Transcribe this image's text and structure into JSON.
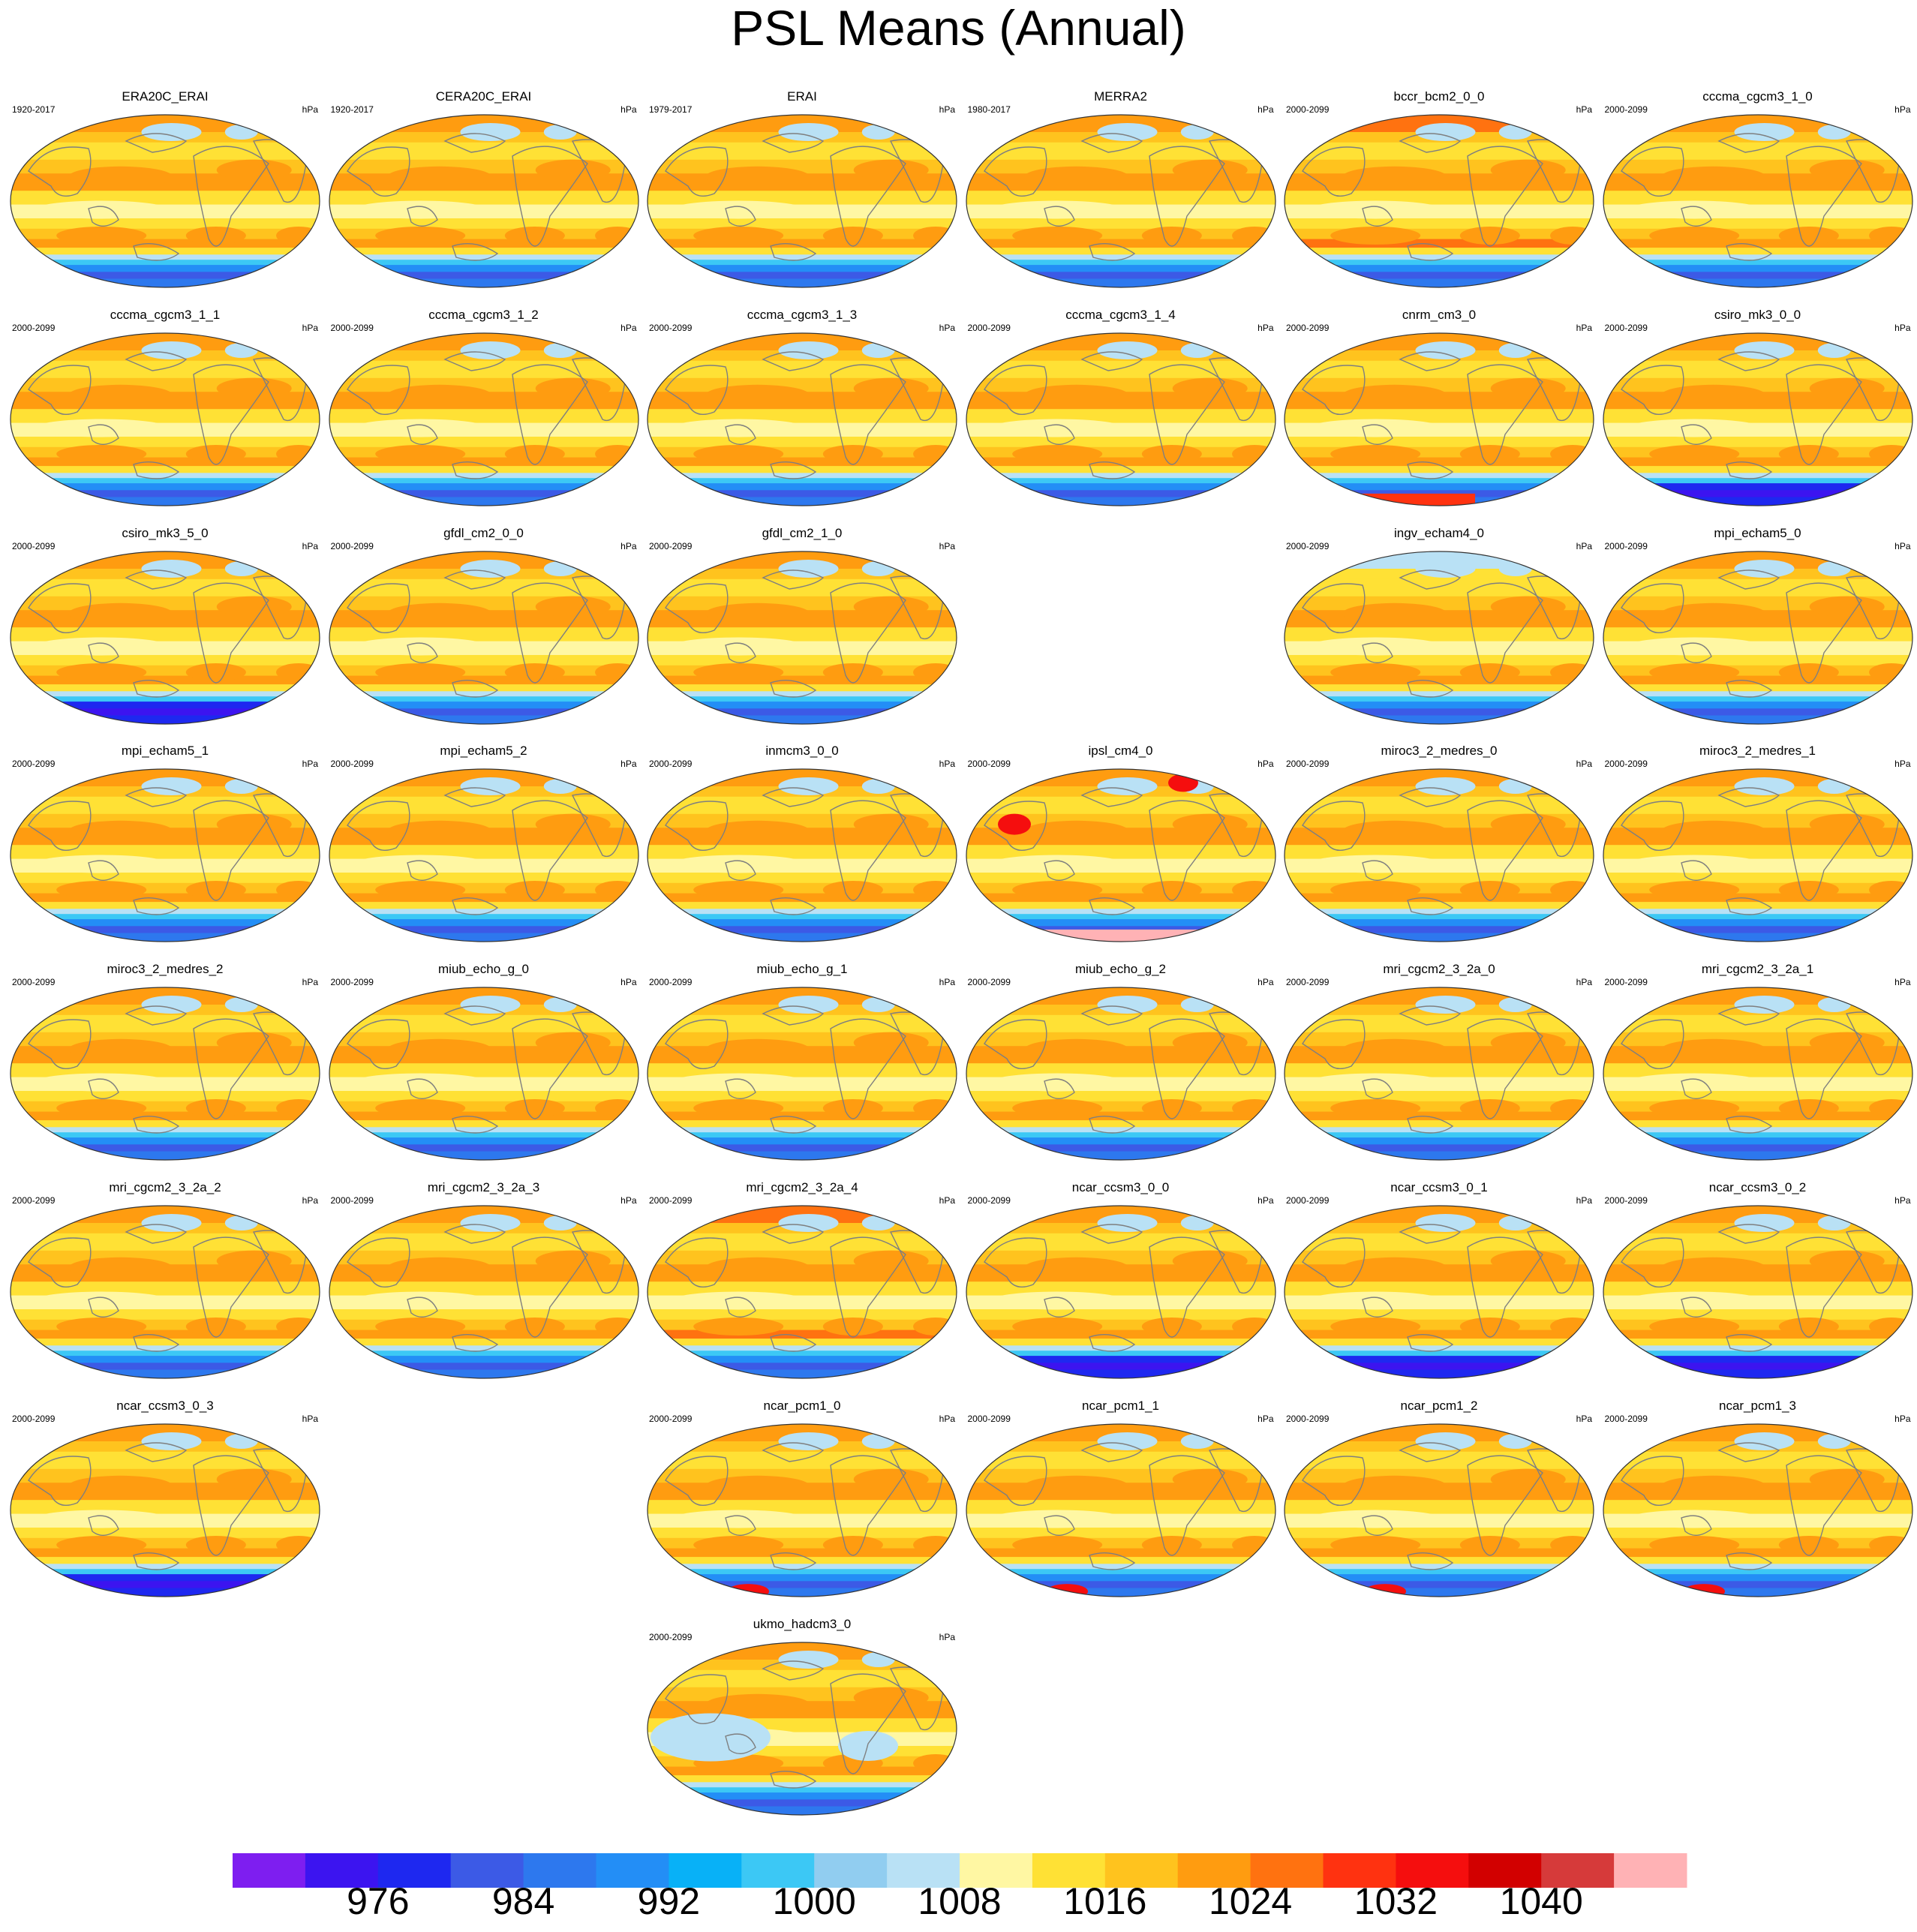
{
  "title": "PSL Means (Annual)",
  "units": "hPa",
  "palette": {
    "bins": [
      "#7e1ef0",
      "#3c14f0",
      "#1e28f0",
      "#3c5ae6",
      "#2d78ee",
      "#238ef6",
      "#08b1f7",
      "#3cc8f5",
      "#91cdf0",
      "#b9e1f5",
      "#fff7a3",
      "#ffe135",
      "#ffc31e",
      "#ff9c10",
      "#ff7210",
      "#ff3210",
      "#f50e0e",
      "#d20000",
      "#d63a3a",
      "#ffb2b5"
    ],
    "levels": [
      "976",
      "984",
      "992",
      "1000",
      "1008",
      "1016",
      "1024",
      "1032",
      "1040"
    ],
    "coast": "#7f7f7f",
    "outline": "#333333"
  },
  "map_style": {
    "default": {
      "shade": "#ffc31e",
      "pacific": "#ff9c10",
      "antarctic": "#3c5ae6"
    },
    "variants": {
      "ipsl_cm4_0": {
        "antarctic_cap": "#ffb2b5",
        "land_high": "#f50e0e"
      },
      "ukmo_hadcm3_0": {
        "tropics": "#b9e1f5"
      },
      "cnrm_cm3_0": {
        "antarctic_cap": "#ff3210"
      }
    }
  },
  "panels": [
    {
      "name": "ERA20C_ERAI",
      "period": "1920-2017",
      "units": "hPa",
      "style": "obs"
    },
    {
      "name": "CERA20C_ERAI",
      "period": "1920-2017",
      "units": "hPa",
      "style": "obs"
    },
    {
      "name": "ERAI",
      "period": "1979-2017",
      "units": "hPa",
      "style": "obs"
    },
    {
      "name": "MERRA2",
      "period": "1980-2017",
      "units": "hPa",
      "style": "obs"
    },
    {
      "name": "bccr_bcm2_0_0",
      "period": "2000-2099",
      "units": "hPa",
      "style": "warm"
    },
    {
      "name": "cccma_cgcm3_1_0",
      "period": "2000-2099",
      "units": "hPa",
      "style": "model"
    },
    {
      "name": "cccma_cgcm3_1_1",
      "period": "2000-2099",
      "units": "hPa",
      "style": "model"
    },
    {
      "name": "cccma_cgcm3_1_2",
      "period": "2000-2099",
      "units": "hPa",
      "style": "model"
    },
    {
      "name": "cccma_cgcm3_1_3",
      "period": "2000-2099",
      "units": "hPa",
      "style": "model"
    },
    {
      "name": "cccma_cgcm3_1_4",
      "period": "2000-2099",
      "units": "hPa",
      "style": "model"
    },
    {
      "name": "cnrm_cm3_0",
      "period": "2000-2099",
      "units": "hPa",
      "style": "cnrm"
    },
    {
      "name": "csiro_mk3_0_0",
      "period": "2000-2099",
      "units": "hPa",
      "style": "deep"
    },
    {
      "name": "csiro_mk3_5_0",
      "period": "2000-2099",
      "units": "hPa",
      "style": "deep"
    },
    {
      "name": "gfdl_cm2_0_0",
      "period": "2000-2099",
      "units": "hPa",
      "style": "model"
    },
    {
      "name": "gfdl_cm2_1_0",
      "period": "2000-2099",
      "units": "hPa",
      "style": "model"
    },
    null,
    {
      "name": "ingv_echam4_0",
      "period": "2000-2099",
      "units": "hPa",
      "style": "cool"
    },
    {
      "name": "mpi_echam5_0",
      "period": "2000-2099",
      "units": "hPa",
      "style": "model"
    },
    {
      "name": "mpi_echam5_1",
      "period": "2000-2099",
      "units": "hPa",
      "style": "model"
    },
    {
      "name": "mpi_echam5_2",
      "period": "2000-2099",
      "units": "hPa",
      "style": "model"
    },
    {
      "name": "inmcm3_0_0",
      "period": "2000-2099",
      "units": "hPa",
      "style": "model"
    },
    {
      "name": "ipsl_cm4_0",
      "period": "2000-2099",
      "units": "hPa",
      "style": "ipsl"
    },
    {
      "name": "miroc3_2_medres_0",
      "period": "2000-2099",
      "units": "hPa",
      "style": "model"
    },
    {
      "name": "miroc3_2_medres_1",
      "period": "2000-2099",
      "units": "hPa",
      "style": "model"
    },
    {
      "name": "miroc3_2_medres_2",
      "period": "2000-2099",
      "units": "hPa",
      "style": "model"
    },
    {
      "name": "miub_echo_g_0",
      "period": "2000-2099",
      "units": "hPa",
      "style": "obs"
    },
    {
      "name": "miub_echo_g_1",
      "period": "2000-2099",
      "units": "hPa",
      "style": "obs"
    },
    {
      "name": "miub_echo_g_2",
      "period": "2000-2099",
      "units": "hPa",
      "style": "obs"
    },
    {
      "name": "mri_cgcm2_3_2a_0",
      "period": "2000-2099",
      "units": "hPa",
      "style": "model"
    },
    {
      "name": "mri_cgcm2_3_2a_1",
      "period": "2000-2099",
      "units": "hPa",
      "style": "model"
    },
    {
      "name": "mri_cgcm2_3_2a_2",
      "period": "2000-2099",
      "units": "hPa",
      "style": "model"
    },
    {
      "name": "mri_cgcm2_3_2a_3",
      "period": "2000-2099",
      "units": "hPa",
      "style": "model"
    },
    {
      "name": "mri_cgcm2_3_2a_4",
      "period": "2000-2099",
      "units": "hPa",
      "style": "warm"
    },
    {
      "name": "ncar_ccsm3_0_0",
      "period": "2000-2099",
      "units": "hPa",
      "style": "deep"
    },
    {
      "name": "ncar_ccsm3_0_1",
      "period": "2000-2099",
      "units": "hPa",
      "style": "deep"
    },
    {
      "name": "ncar_ccsm3_0_2",
      "period": "2000-2099",
      "units": "hPa",
      "style": "deep"
    },
    {
      "name": "ncar_ccsm3_0_3",
      "period": "2000-2099",
      "units": "hPa",
      "style": "deep"
    },
    null,
    {
      "name": "ncar_pcm1_0",
      "period": "2000-2099",
      "units": "hPa",
      "style": "pcm"
    },
    {
      "name": "ncar_pcm1_1",
      "period": "2000-2099",
      "units": "hPa",
      "style": "pcm"
    },
    {
      "name": "ncar_pcm1_2",
      "period": "2000-2099",
      "units": "hPa",
      "style": "pcm"
    },
    {
      "name": "ncar_pcm1_3",
      "period": "2000-2099",
      "units": "hPa",
      "style": "pcm"
    },
    null,
    null,
    {
      "name": "ukmo_hadcm3_0",
      "period": "2000-2099",
      "units": "hPa",
      "style": "ukmo"
    }
  ]
}
